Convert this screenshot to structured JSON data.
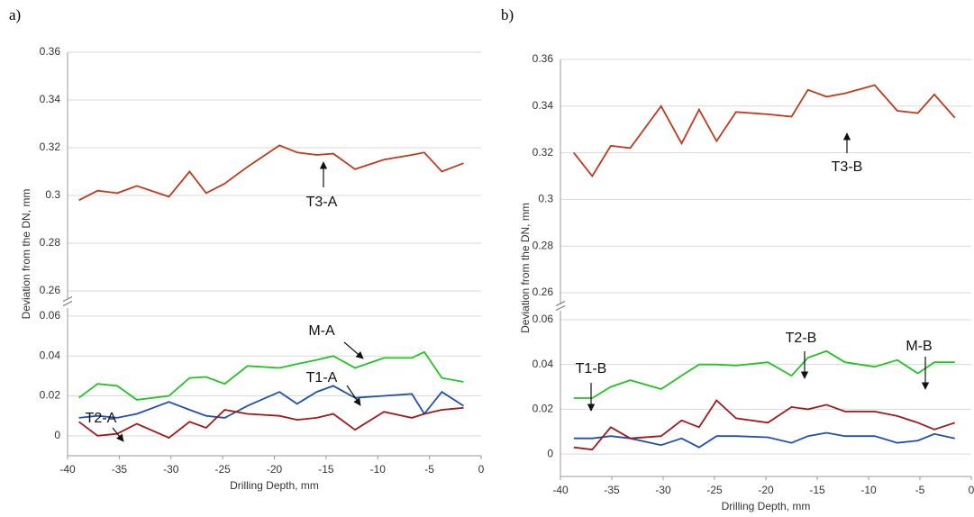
{
  "chart_data": [
    {
      "type": "line",
      "panel_label": "a)",
      "xlabel": "Drilling Depth, mm",
      "ylabel": "Deviation from the DN, mm",
      "xlim": [
        -40,
        0
      ],
      "xticks": [
        -40,
        -35,
        -30,
        -25,
        -20,
        -15,
        -10,
        -5,
        0
      ],
      "y_segments": [
        {
          "ylim": [
            0.257,
            0.36
          ],
          "yticks": [
            0.26,
            0.28,
            0.3,
            0.32,
            0.34,
            0.36
          ]
        },
        {
          "ylim": [
            -0.01,
            0.064
          ],
          "yticks": [
            0,
            0.02,
            0.04,
            0.06
          ]
        }
      ],
      "grid": true,
      "x": [
        -38.9,
        -37.1,
        -35.2,
        -33.3,
        -30.2,
        -28.2,
        -26.6,
        -24.8,
        -22.6,
        -19.5,
        -17.8,
        -15.9,
        -14.3,
        -12.2,
        -9.4,
        -6.7,
        -5.5,
        -3.8,
        -1.7
      ],
      "series": [
        {
          "name": "T3-A",
          "color": "#c0391b",
          "values": [
            0.298,
            0.302,
            0.301,
            0.304,
            0.2995,
            0.31,
            0.301,
            0.305,
            0.312,
            0.321,
            0.318,
            0.317,
            0.3175,
            0.311,
            0.315,
            0.317,
            0.318,
            0.31,
            0.3135
          ]
        },
        {
          "name": "M-A",
          "color": "#22c322",
          "values": [
            0.019,
            0.026,
            0.025,
            0.018,
            0.02,
            0.029,
            0.0295,
            0.026,
            0.035,
            0.034,
            0.036,
            0.038,
            0.04,
            0.034,
            0.039,
            0.039,
            0.042,
            0.029,
            0.027
          ]
        },
        {
          "name": "T1-A",
          "color": "#1f4fb0",
          "values": [
            0.009,
            0.01,
            0.009,
            0.011,
            0.017,
            0.013,
            0.01,
            0.009,
            0.015,
            0.022,
            0.016,
            0.022,
            0.025,
            0.019,
            0.02,
            0.021,
            0.011,
            0.022,
            0.015
          ]
        },
        {
          "name": "T2-A",
          "color": "#a01a1a",
          "values": [
            0.007,
            0.0,
            0.001,
            0.006,
            -0.001,
            0.007,
            0.004,
            0.013,
            0.011,
            0.01,
            0.008,
            0.009,
            0.011,
            0.003,
            0.012,
            0.009,
            0.011,
            0.013,
            0.014
          ]
        }
      ]
    },
    {
      "type": "line",
      "panel_label": "b)",
      "xlabel": "Drilling Depth, mm",
      "ylabel": "Deviation from the DN, mm",
      "xlim": [
        -40,
        0
      ],
      "xticks": [
        -40,
        -35,
        -30,
        -25,
        -20,
        -15,
        -10,
        -5,
        0
      ],
      "y_segments": [
        {
          "ylim": [
            0.255,
            0.36
          ],
          "yticks": [
            0.26,
            0.28,
            0.3,
            0.32,
            0.34,
            0.36
          ]
        },
        {
          "ylim": [
            -0.01,
            0.064
          ],
          "yticks": [
            0,
            0.02,
            0.04,
            0.06
          ]
        }
      ],
      "grid": true,
      "x": [
        -38.7,
        -36.9,
        -35.1,
        -33.2,
        -30.2,
        -28.2,
        -26.5,
        -24.8,
        -22.9,
        -19.8,
        -17.5,
        -15.9,
        -14.1,
        -12.3,
        -9.4,
        -7.2,
        -5.2,
        -3.6,
        -1.6
      ],
      "series": [
        {
          "name": "T3-B",
          "color": "#c0391b",
          "values": [
            0.32,
            0.31,
            0.323,
            0.322,
            0.34,
            0.324,
            0.3385,
            0.325,
            0.3375,
            0.3365,
            0.3355,
            0.347,
            0.344,
            0.3455,
            0.349,
            0.338,
            0.337,
            0.345,
            0.335
          ]
        },
        {
          "name": "M-B",
          "color": "#22c322",
          "values": [
            0.025,
            0.025,
            0.03,
            0.033,
            0.029,
            0.035,
            0.04,
            0.04,
            0.0395,
            0.041,
            0.035,
            0.043,
            0.046,
            0.041,
            0.039,
            0.042,
            0.036,
            0.041,
            0.041
          ]
        },
        {
          "name": "T1-B",
          "color": "#1f4fb0",
          "values": [
            0.007,
            0.007,
            0.008,
            0.007,
            0.004,
            0.007,
            0.003,
            0.008,
            0.008,
            0.0075,
            0.005,
            0.008,
            0.0095,
            0.008,
            0.008,
            0.005,
            0.006,
            0.009,
            0.007
          ]
        },
        {
          "name": "T2-B",
          "color": "#a01a1a",
          "values": [
            0.003,
            0.002,
            0.012,
            0.007,
            0.008,
            0.015,
            0.012,
            0.024,
            0.016,
            0.014,
            0.021,
            0.02,
            0.022,
            0.019,
            0.019,
            0.017,
            0.014,
            0.011,
            0.014
          ]
        }
      ]
    }
  ]
}
